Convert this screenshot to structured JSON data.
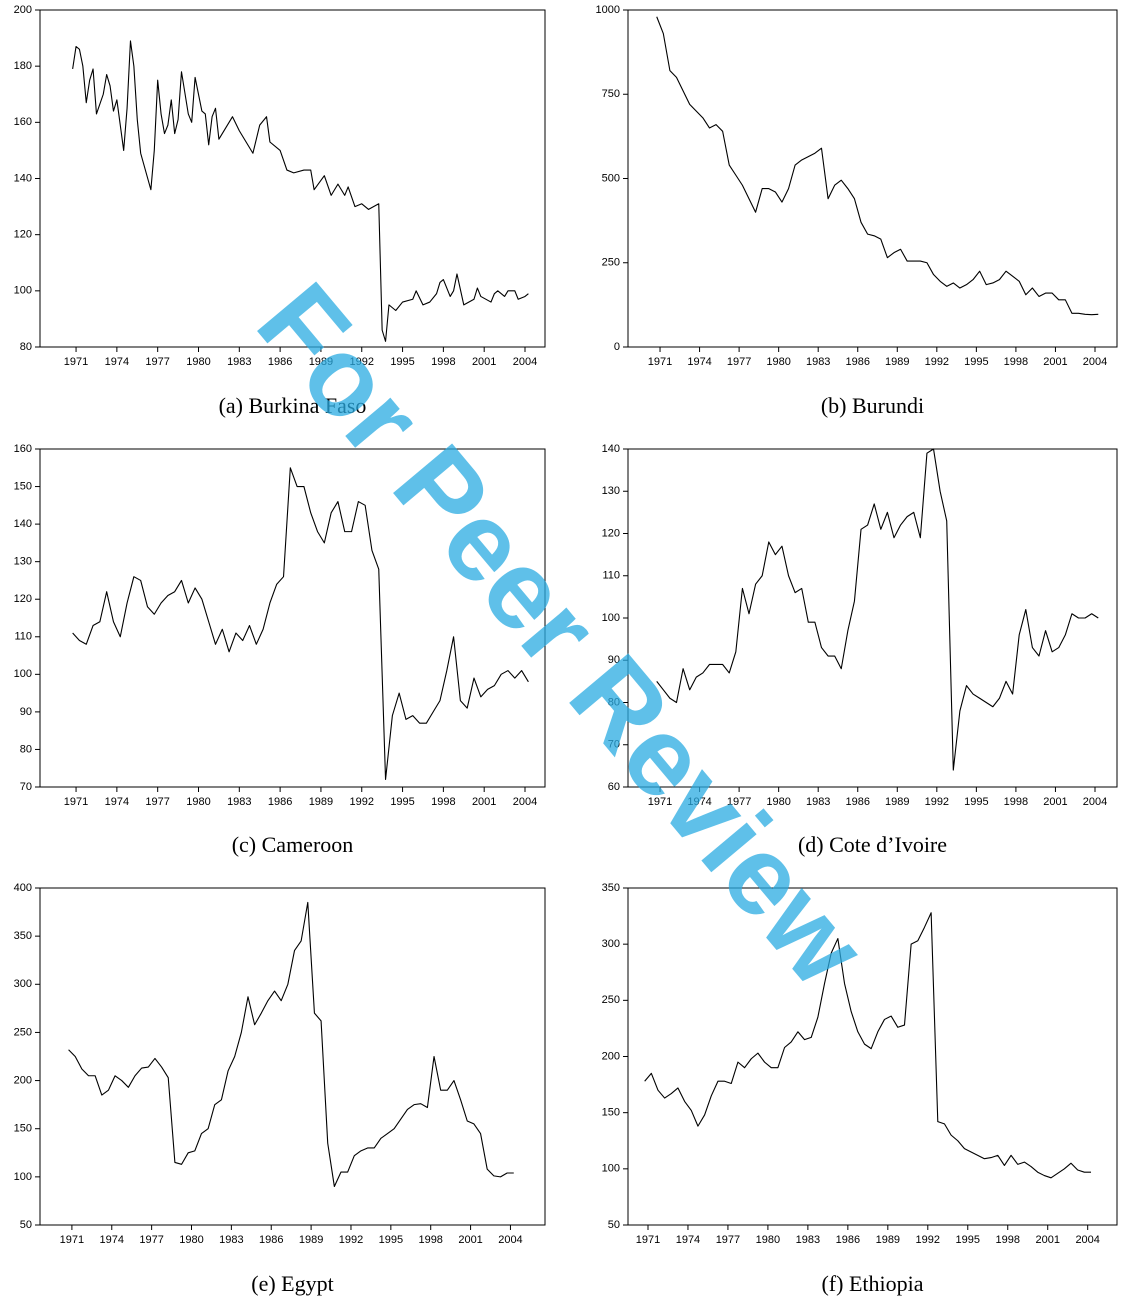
{
  "watermark": "For Peer Review",
  "chart_data": [
    {
      "type": "line",
      "title": "(a) Burkina Faso",
      "color": "#000000",
      "xlim": [
        1968.35,
        2005.47
      ],
      "ylim": [
        80,
        200
      ],
      "xticks": [
        1971,
        1974,
        1977,
        1980,
        1983,
        1986,
        1989,
        1992,
        1995,
        1998,
        2001,
        2004
      ],
      "yticks": [
        80,
        100,
        120,
        140,
        160,
        180,
        200
      ],
      "x": [
        1970.75,
        1971,
        1971.25,
        1971.5,
        1971.75,
        1972,
        1972.25,
        1972.5,
        1973,
        1973.25,
        1973.5,
        1973.75,
        1974,
        1974.5,
        1974.75,
        1975,
        1975.25,
        1975.5,
        1975.75,
        1976.5,
        1976.75,
        1977,
        1977.25,
        1977.5,
        1977.75,
        1978,
        1978.25,
        1978.5,
        1978.75,
        1979.25,
        1979.5,
        1979.75,
        1980.25,
        1980.5,
        1980.75,
        1981,
        1981.25,
        1981.5,
        1982,
        1982.5,
        1983,
        1983.5,
        1984,
        1984.5,
        1985,
        1985.25,
        1986,
        1986.5,
        1987,
        1987.75,
        1988.25,
        1988.5,
        1989.25,
        1989.75,
        1990.25,
        1990.75,
        1991,
        1991.5,
        1992,
        1992.5,
        1993.25,
        1993.5,
        1993.75,
        1994,
        1994.5,
        1995,
        1995.75,
        1996,
        1996.5,
        1997,
        1997.5,
        1997.75,
        1998,
        1998.5,
        1998.75,
        1999,
        1999.5,
        2000.25,
        2000.5,
        2000.75,
        2001.5,
        2001.75,
        2002,
        2002.5,
        2002.75,
        2003.25,
        2003.5,
        2004,
        2004.25
      ],
      "values": [
        179,
        187,
        186,
        180,
        167,
        175,
        179,
        163,
        170,
        177,
        173,
        164,
        168,
        150,
        165,
        189,
        180,
        161,
        149,
        136,
        150,
        175,
        163,
        156,
        159,
        168,
        156,
        161,
        178,
        163,
        160,
        176,
        164,
        163,
        152,
        162,
        165,
        154,
        158,
        162,
        157,
        153,
        149,
        159,
        162,
        153,
        150,
        143,
        142,
        143,
        143,
        136,
        141,
        134,
        138,
        134,
        137,
        130,
        131,
        129,
        131,
        86,
        82,
        95,
        93,
        96,
        97,
        100,
        95,
        96,
        99,
        103,
        104,
        98,
        100,
        106,
        95,
        97,
        101,
        98,
        96,
        99,
        100,
        98,
        100,
        100,
        97,
        98,
        99
      ]
    },
    {
      "type": "line",
      "title": "(b) Burundi",
      "color": "#000000",
      "xlim": [
        1968.57,
        2005.67
      ],
      "ylim": [
        0,
        1000
      ],
      "xticks": [
        1971,
        1974,
        1977,
        1980,
        1983,
        1986,
        1989,
        1992,
        1995,
        1998,
        2001,
        2004
      ],
      "yticks": [
        0,
        250,
        500,
        750,
        1000
      ],
      "x": [
        1970.75,
        1971.25,
        1971.75,
        1972.25,
        1972.75,
        1973.25,
        1973.75,
        1974.25,
        1974.75,
        1975.25,
        1975.75,
        1976.25,
        1976.75,
        1977.25,
        1977.75,
        1978.25,
        1978.75,
        1979.25,
        1979.75,
        1980.25,
        1980.75,
        1981.25,
        1981.75,
        1982.25,
        1982.75,
        1983.25,
        1983.75,
        1984.25,
        1984.75,
        1985.25,
        1985.75,
        1986.25,
        1986.75,
        1987.25,
        1987.75,
        1988.25,
        1988.75,
        1989.25,
        1989.75,
        1990.25,
        1990.75,
        1991.25,
        1991.75,
        1992.25,
        1992.75,
        1993.25,
        1993.75,
        1994.25,
        1994.75,
        1995.25,
        1995.75,
        1996.25,
        1996.75,
        1997.25,
        1997.75,
        1998.25,
        1998.75,
        1999.25,
        1999.75,
        2000.25,
        2000.75,
        2001.25,
        2001.75,
        2002.25,
        2002.75,
        2003.25,
        2003.75,
        2004.25
      ],
      "values": [
        980,
        930,
        820,
        800,
        760,
        720,
        700,
        680,
        650,
        660,
        640,
        540,
        510,
        480,
        440,
        400,
        470,
        470,
        460,
        430,
        470,
        540,
        555,
        565,
        575,
        590,
        440,
        480,
        495,
        470,
        440,
        370,
        335,
        330,
        320,
        265,
        280,
        290,
        255,
        255,
        255,
        250,
        215,
        195,
        180,
        190,
        175,
        185,
        200,
        225,
        185,
        190,
        200,
        225,
        210,
        195,
        155,
        175,
        150,
        160,
        160,
        140,
        140,
        100,
        100,
        97,
        96,
        97
      ]
    },
    {
      "type": "line",
      "title": "(c) Cameroon",
      "color": "#000000",
      "xlim": [
        1968.35,
        2005.47
      ],
      "ylim": [
        70,
        160
      ],
      "xticks": [
        1971,
        1974,
        1977,
        1980,
        1983,
        1986,
        1989,
        1992,
        1995,
        1998,
        2001,
        2004
      ],
      "yticks": [
        70,
        80,
        90,
        100,
        110,
        120,
        130,
        140,
        150,
        160
      ],
      "x": [
        1970.75,
        1971.25,
        1971.75,
        1972.25,
        1972.75,
        1973.25,
        1973.75,
        1974.25,
        1974.75,
        1975.25,
        1975.75,
        1976.25,
        1976.75,
        1977.25,
        1977.75,
        1978.25,
        1978.75,
        1979.25,
        1979.75,
        1980.25,
        1980.75,
        1981.25,
        1981.75,
        1982.25,
        1982.75,
        1983.25,
        1983.75,
        1984.25,
        1984.75,
        1985.25,
        1985.75,
        1986.25,
        1986.75,
        1987.25,
        1987.75,
        1988.25,
        1988.75,
        1989.25,
        1989.75,
        1990.25,
        1990.75,
        1991.25,
        1991.75,
        1992.25,
        1992.75,
        1993.25,
        1993.75,
        1994.25,
        1994.75,
        1995.25,
        1995.75,
        1996.25,
        1996.75,
        1997.25,
        1997.75,
        1998.25,
        1998.75,
        1999.25,
        1999.75,
        2000.25,
        2000.75,
        2001.25,
        2001.75,
        2002.25,
        2002.75,
        2003.25,
        2003.75,
        2004.25
      ],
      "values": [
        111,
        109,
        108,
        113,
        114,
        122,
        114,
        110,
        119,
        126,
        125,
        118,
        116,
        119,
        121,
        122,
        125,
        119,
        123,
        120,
        114,
        108,
        112,
        106,
        111,
        109,
        113,
        108,
        112,
        119,
        124,
        126,
        155,
        150,
        150,
        143,
        138,
        135,
        143,
        146,
        138,
        138,
        146,
        145,
        133,
        128,
        72,
        89,
        95,
        88,
        89,
        87,
        87,
        90,
        93,
        101,
        110,
        93,
        91,
        99,
        94,
        96,
        97,
        100,
        101,
        99,
        101,
        98
      ]
    },
    {
      "type": "line",
      "title": "(d) Cote d’Ivoire",
      "color": "#000000",
      "xlim": [
        1968.57,
        2005.67
      ],
      "ylim": [
        60,
        140
      ],
      "xticks": [
        1971,
        1974,
        1977,
        1980,
        1983,
        1986,
        1989,
        1992,
        1995,
        1998,
        2001,
        2004
      ],
      "yticks": [
        60,
        70,
        80,
        90,
        100,
        110,
        120,
        130,
        140
      ],
      "x": [
        1970.75,
        1971.25,
        1971.75,
        1972.25,
        1972.75,
        1973.25,
        1973.75,
        1974.25,
        1974.75,
        1975.25,
        1975.75,
        1976.25,
        1976.75,
        1977.25,
        1977.75,
        1978.25,
        1978.75,
        1979.25,
        1979.75,
        1980.25,
        1980.75,
        1981.25,
        1981.75,
        1982.25,
        1982.75,
        1983.25,
        1983.75,
        1984.25,
        1984.75,
        1985.25,
        1985.75,
        1986.25,
        1986.75,
        1987.25,
        1987.75,
        1988.25,
        1988.75,
        1989.25,
        1989.75,
        1990.25,
        1990.75,
        1991.25,
        1991.75,
        1992.25,
        1992.75,
        1993.25,
        1993.75,
        1994.25,
        1994.75,
        1995.25,
        1995.75,
        1996.25,
        1996.75,
        1997.25,
        1997.75,
        1998.25,
        1998.75,
        1999.25,
        1999.75,
        2000.25,
        2000.75,
        2001.25,
        2001.75,
        2002.25,
        2002.75,
        2003.25,
        2003.75,
        2004.25
      ],
      "values": [
        85,
        83,
        81,
        80,
        88,
        83,
        86,
        87,
        89,
        89,
        89,
        87,
        92,
        107,
        101,
        108,
        110,
        118,
        115,
        117,
        110,
        106,
        107,
        99,
        99,
        93,
        91,
        91,
        88,
        97,
        104,
        121,
        122,
        127,
        121,
        125,
        119,
        122,
        124,
        125,
        119,
        139,
        140,
        130,
        123,
        64,
        78,
        84,
        82,
        81,
        80,
        79,
        81,
        85,
        82,
        96,
        102,
        93,
        91,
        97,
        92,
        93,
        96,
        101,
        100,
        100,
        101,
        100
      ]
    },
    {
      "type": "line",
      "title": "(e) Egypt",
      "color": "#000000",
      "xlim": [
        1968.6,
        2006.6
      ],
      "ylim": [
        50,
        400
      ],
      "xticks": [
        1971,
        1974,
        1977,
        1980,
        1983,
        1986,
        1989,
        1992,
        1995,
        1998,
        2001,
        2004
      ],
      "yticks": [
        50,
        100,
        150,
        200,
        250,
        300,
        350,
        400
      ],
      "x": [
        1970.75,
        1971.25,
        1971.75,
        1972.25,
        1972.75,
        1973.25,
        1973.75,
        1974.25,
        1974.75,
        1975.25,
        1975.75,
        1976.25,
        1976.75,
        1977.25,
        1977.75,
        1978.25,
        1978.75,
        1979.25,
        1979.75,
        1980.25,
        1980.75,
        1981.25,
        1981.75,
        1982.25,
        1982.75,
        1983.25,
        1983.75,
        1984.25,
        1984.75,
        1985.25,
        1985.75,
        1986.25,
        1986.75,
        1987.25,
        1987.75,
        1988.25,
        1988.75,
        1989.25,
        1989.75,
        1990.25,
        1990.75,
        1991.25,
        1991.75,
        1992.25,
        1992.75,
        1993.25,
        1993.75,
        1994.25,
        1994.75,
        1995.25,
        1995.75,
        1996.25,
        1996.75,
        1997.25,
        1997.75,
        1998.25,
        1998.75,
        1999.25,
        1999.75,
        2000.25,
        2000.75,
        2001.25,
        2001.75,
        2002.25,
        2002.75,
        2003.25,
        2003.75,
        2004.25
      ],
      "values": [
        232,
        225,
        212,
        205,
        205,
        185,
        190,
        205,
        200,
        193,
        205,
        213,
        214,
        223,
        214,
        203,
        115,
        113,
        125,
        127,
        145,
        150,
        175,
        180,
        210,
        225,
        250,
        287,
        258,
        270,
        283,
        293,
        283,
        300,
        335,
        345,
        385,
        270,
        262,
        135,
        90,
        105,
        105,
        122,
        127,
        130,
        130,
        140,
        145,
        150,
        160,
        170,
        175,
        176,
        172,
        225,
        190,
        190,
        200,
        180,
        158,
        155,
        145,
        108,
        101,
        100,
        104,
        104
      ]
    },
    {
      "type": "line",
      "title": "(f) Ethiopia",
      "color": "#000000",
      "xlim": [
        1969.5,
        2006.2
      ],
      "ylim": [
        50,
        350
      ],
      "xticks": [
        1971,
        1974,
        1977,
        1980,
        1983,
        1986,
        1989,
        1992,
        1995,
        1998,
        2001,
        2004
      ],
      "yticks": [
        50,
        100,
        150,
        200,
        250,
        300,
        350
      ],
      "x": [
        1970.75,
        1971.25,
        1971.75,
        1972.25,
        1972.75,
        1973.25,
        1973.75,
        1974.25,
        1974.75,
        1975.25,
        1975.75,
        1976.25,
        1976.75,
        1977.25,
        1977.75,
        1978.25,
        1978.75,
        1979.25,
        1979.75,
        1980.25,
        1980.75,
        1981.25,
        1981.75,
        1982.25,
        1982.75,
        1983.25,
        1983.75,
        1984.25,
        1984.75,
        1985.25,
        1985.75,
        1986.25,
        1986.75,
        1987.25,
        1987.75,
        1988.25,
        1988.75,
        1989.25,
        1989.75,
        1990.25,
        1990.75,
        1991.25,
        1991.75,
        1992.25,
        1992.75,
        1993.25,
        1993.75,
        1994.25,
        1994.75,
        1995.25,
        1995.75,
        1996.25,
        1996.75,
        1997.25,
        1997.75,
        1998.25,
        1998.75,
        1999.25,
        1999.75,
        2000.25,
        2000.75,
        2001.25,
        2001.75,
        2002.25,
        2002.75,
        2003.25,
        2003.75,
        2004.25
      ],
      "values": [
        178,
        185,
        170,
        163,
        167,
        172,
        160,
        152,
        138,
        148,
        165,
        178,
        178,
        176,
        195,
        190,
        198,
        203,
        195,
        190,
        190,
        208,
        213,
        222,
        215,
        217,
        235,
        265,
        292,
        305,
        265,
        240,
        222,
        211,
        207,
        222,
        233,
        236,
        226,
        228,
        300,
        303,
        315,
        328,
        142,
        140,
        130,
        125,
        118,
        115,
        112,
        109,
        110,
        112,
        103,
        112,
        104,
        106,
        102,
        97,
        94,
        92,
        96,
        100,
        105,
        99,
        97,
        97
      ]
    }
  ]
}
